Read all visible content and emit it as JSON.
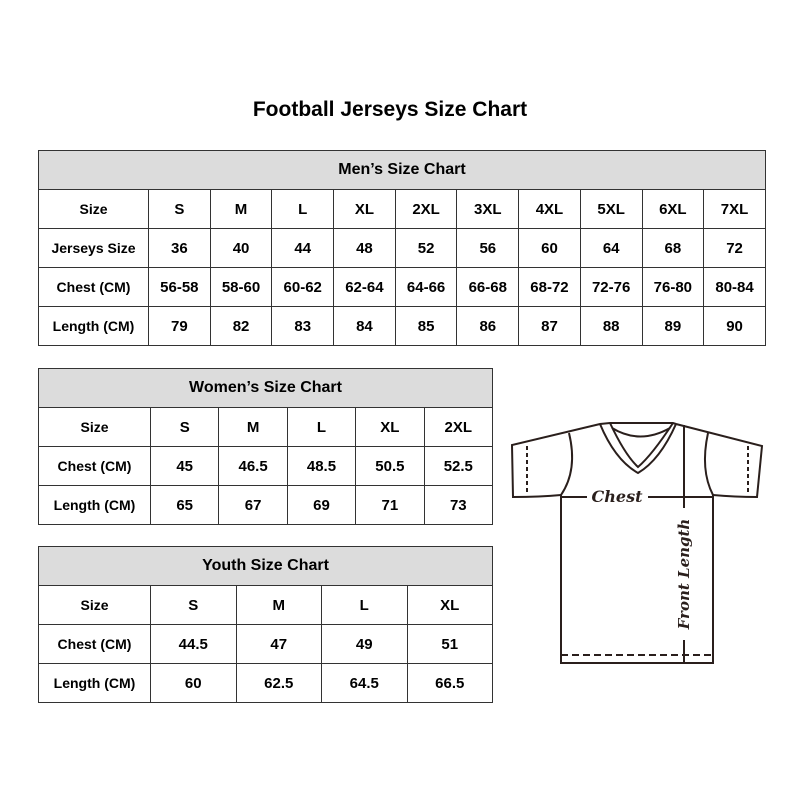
{
  "title": "Football Jerseys Size Chart",
  "men": {
    "caption": "Men’s Size Chart",
    "rows": [
      [
        "Size",
        "S",
        "M",
        "L",
        "XL",
        "2XL",
        "3XL",
        "4XL",
        "5XL",
        "6XL",
        "7XL"
      ],
      [
        "Jerseys Size",
        "36",
        "40",
        "44",
        "48",
        "52",
        "56",
        "60",
        "64",
        "68",
        "72"
      ],
      [
        "Chest (CM)",
        "56-58",
        "58-60",
        "60-62",
        "62-64",
        "64-66",
        "66-68",
        "68-72",
        "72-76",
        "76-80",
        "80-84"
      ],
      [
        "Length (CM)",
        "79",
        "82",
        "83",
        "84",
        "85",
        "86",
        "87",
        "88",
        "89",
        "90"
      ]
    ]
  },
  "women": {
    "caption": "Women’s Size Chart",
    "rows": [
      [
        "Size",
        "S",
        "M",
        "L",
        "XL",
        "2XL"
      ],
      [
        "Chest (CM)",
        "45",
        "46.5",
        "48.5",
        "50.5",
        "52.5"
      ],
      [
        "Length (CM)",
        "65",
        "67",
        "69",
        "71",
        "73"
      ]
    ]
  },
  "youth": {
    "caption": "Youth Size Chart",
    "rows": [
      [
        "Size",
        "S",
        "M",
        "L",
        "XL"
      ],
      [
        "Chest (CM)",
        "44.5",
        "47",
        "49",
        "51"
      ],
      [
        "Length (CM)",
        "60",
        "62.5",
        "64.5",
        "66.5"
      ]
    ]
  },
  "diagram": {
    "chest_label": "Chest",
    "length_label": "Front Length"
  },
  "colors": {
    "header_bg": "#dcdcdc",
    "border": "#333333",
    "outline": "#2a1f1c"
  }
}
